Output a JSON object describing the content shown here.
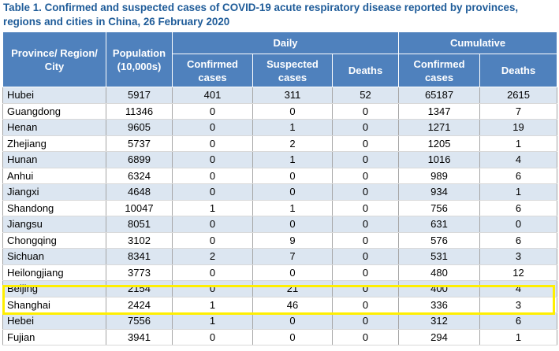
{
  "title": "Table 1. Confirmed and suspected cases of COVID-19 acute respiratory disease reported by provinces, regions and cities in China, 26 February 2020",
  "headers": {
    "province": "Province/ Region/ City",
    "population": "Population (10,000s)",
    "daily": "Daily",
    "cumulative": "Cumulative",
    "daily_confirmed": "Confirmed cases",
    "daily_suspected": "Suspected cases",
    "daily_deaths": "Deaths",
    "cum_confirmed": "Confirmed cases",
    "cum_deaths": "Deaths"
  },
  "rows": [
    [
      "Hubei",
      "5917",
      "401",
      "311",
      "52",
      "65187",
      "2615"
    ],
    [
      "Guangdong",
      "11346",
      "0",
      "0",
      "0",
      "1347",
      "7"
    ],
    [
      "Henan",
      "9605",
      "0",
      "1",
      "0",
      "1271",
      "19"
    ],
    [
      "Zhejiang",
      "5737",
      "0",
      "2",
      "0",
      "1205",
      "1"
    ],
    [
      "Hunan",
      "6899",
      "0",
      "1",
      "0",
      "1016",
      "4"
    ],
    [
      "Anhui",
      "6324",
      "0",
      "0",
      "0",
      "989",
      "6"
    ],
    [
      "Jiangxi",
      "4648",
      "0",
      "0",
      "0",
      "934",
      "1"
    ],
    [
      "Shandong",
      "10047",
      "1",
      "1",
      "0",
      "756",
      "6"
    ],
    [
      "Jiangsu",
      "8051",
      "0",
      "0",
      "0",
      "631",
      "0"
    ],
    [
      "Chongqing",
      "3102",
      "0",
      "9",
      "0",
      "576",
      "6"
    ],
    [
      "Sichuan",
      "8341",
      "2",
      "7",
      "0",
      "531",
      "3"
    ],
    [
      "Heilongjiang",
      "3773",
      "0",
      "0",
      "0",
      "480",
      "12"
    ],
    [
      "Beijing",
      "2154",
      "0",
      "21",
      "0",
      "400",
      "4"
    ],
    [
      "Shanghai",
      "2424",
      "1",
      "46",
      "0",
      "336",
      "3"
    ],
    [
      "Hebei",
      "7556",
      "1",
      "0",
      "0",
      "312",
      "6"
    ],
    [
      "Fujian",
      "3941",
      "0",
      "0",
      "0",
      "294",
      "1"
    ]
  ],
  "colors": {
    "header_bg": "#4f81bd",
    "band_bg": "#dce6f1",
    "title": "#1f5c99",
    "highlight": "#ffef00"
  }
}
